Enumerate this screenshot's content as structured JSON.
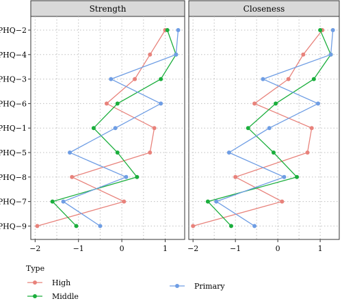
{
  "chart_data": {
    "type": "line",
    "legend": {
      "title": "Type",
      "placement": "bottom-left",
      "entries": [
        "High",
        "Middle",
        "Primary"
      ]
    },
    "colors": {
      "High": "#E8827B",
      "Middle": "#1AAE3C",
      "Primary": "#6E9DE4",
      "grid": "#bdbdbd",
      "strip_fill": "#d9d9d9"
    },
    "categories": [
      "PHQ−2",
      "PHQ−4",
      "PHQ−3",
      "PHQ−6",
      "PHQ−1",
      "PHQ−5",
      "PHQ−8",
      "PHQ−7",
      "PHQ−9"
    ],
    "xlim": [
      -2.1,
      1.45
    ],
    "x_ticks": [
      -2,
      -1,
      0,
      1
    ],
    "x_tick_labels": [
      "−2",
      "−1",
      "0",
      "1"
    ],
    "grid": true,
    "panels": [
      {
        "title": "Strength",
        "series": [
          {
            "name": "High",
            "values": [
              1.0,
              0.65,
              0.3,
              -0.35,
              0.75,
              0.65,
              -1.15,
              0.05,
              -1.95
            ]
          },
          {
            "name": "Middle",
            "values": [
              1.05,
              1.25,
              0.9,
              -0.1,
              -0.65,
              -0.1,
              0.35,
              -1.6,
              -1.05
            ]
          },
          {
            "name": "Primary",
            "values": [
              1.3,
              1.25,
              -0.25,
              0.9,
              -0.15,
              -1.2,
              0.1,
              -1.35,
              -0.5
            ]
          }
        ]
      },
      {
        "title": "Closeness",
        "series": [
          {
            "name": "High",
            "values": [
              1.05,
              0.6,
              0.25,
              -0.55,
              0.8,
              0.7,
              -1.0,
              0.1,
              -2.0
            ]
          },
          {
            "name": "Middle",
            "values": [
              1.0,
              1.25,
              0.85,
              -0.05,
              -0.7,
              -0.1,
              0.45,
              -1.65,
              -1.1
            ]
          },
          {
            "name": "Primary",
            "values": [
              1.3,
              1.25,
              -0.35,
              0.95,
              -0.2,
              -1.15,
              0.15,
              -1.45,
              -0.55
            ]
          }
        ]
      }
    ]
  }
}
